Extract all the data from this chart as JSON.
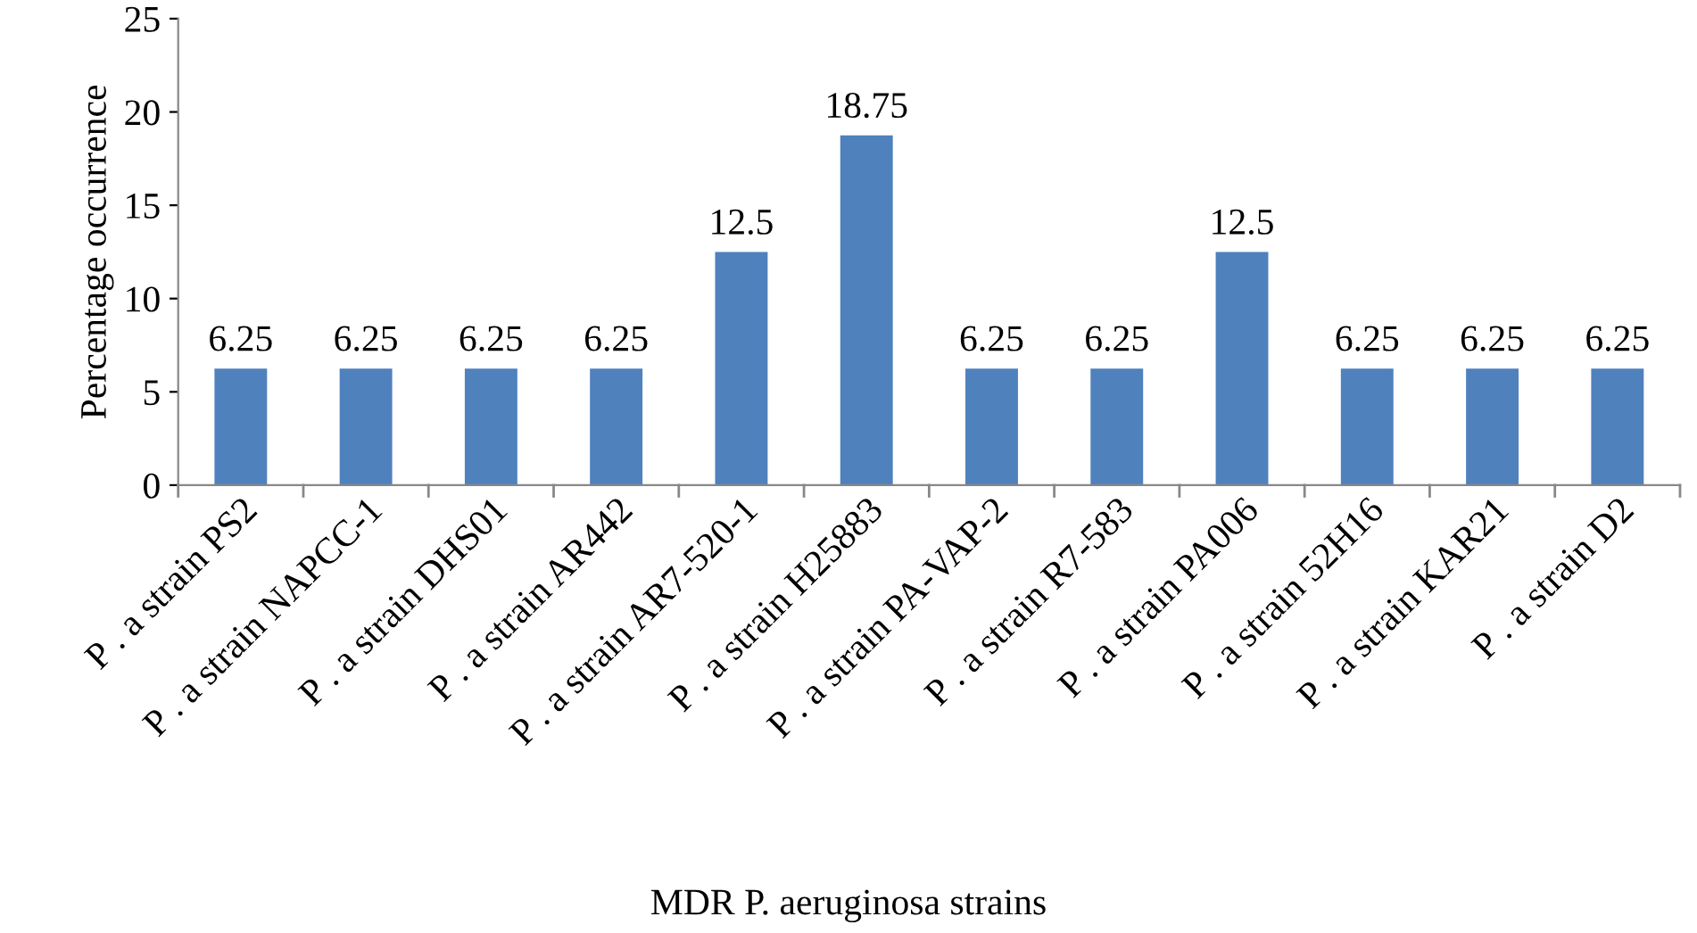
{
  "chart_data": {
    "type": "bar",
    "categories": [
      "P . a strain PS2",
      "P . a strain NAPCC-1",
      "P . a strain DHS01",
      "P . a strain AR442",
      "P . a strain AR7-520-1",
      "P . a strain H25883",
      "P . a strain PA-VAP-2",
      "P . a strain R7-583",
      "P . a strain PA006",
      "P . a strain 52H16",
      "P . a strain KAR21",
      "P . a strain D2"
    ],
    "values": [
      6.25,
      6.25,
      6.25,
      6.25,
      12.5,
      18.75,
      6.25,
      6.25,
      12.5,
      6.25,
      6.25,
      6.25
    ],
    "color": "#4f81bd",
    "ylim": [
      0,
      25
    ],
    "yticks": [
      0,
      5,
      10,
      15,
      20,
      25
    ],
    "ylabel": "Percentage occurrence",
    "xlabel": "MDR P. aeruginosa strains",
    "data_labels": true,
    "grid": false,
    "legend": false
  }
}
